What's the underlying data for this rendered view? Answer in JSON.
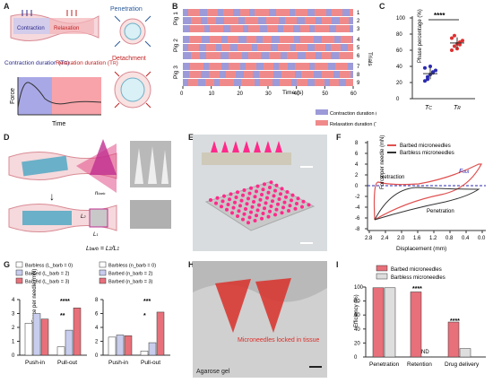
{
  "panels": {
    "A": {
      "letter": "A",
      "contraction_label": "Contraction",
      "relaxation_label": "Relaxation",
      "penetration_label": "Penetration",
      "detachment_label": "Detachment",
      "contraction_duration": "Contraction duration (T_C)",
      "relaxation_duration": "Relaxation duration (T_R)",
      "ylabel": "Force",
      "xlabel": "Time"
    },
    "B": {
      "letter": "B",
      "xlabel": "Time (s)",
      "ylabel": "Trials",
      "group_labels": [
        "Pig 1",
        "Pig 2",
        "Pig 3"
      ],
      "trial_labels": [
        "1",
        "2",
        "3",
        "4",
        "5",
        "6",
        "7",
        "8",
        "9"
      ],
      "xticks": [
        "0",
        "10",
        "20",
        "30",
        "40",
        "50",
        "60"
      ],
      "legend": [
        "Contraction duration (T_C)",
        "Relaxation duration (T_R)"
      ],
      "colors": {
        "contraction": "#9c9ad8",
        "relaxation": "#f08a8a"
      }
    },
    "C": {
      "letter": "C",
      "ylabel": "Phase percentage (%)",
      "yticks": [
        "0",
        "20",
        "40",
        "60",
        "80",
        "100"
      ],
      "xticks": [
        "T_C",
        "T_R"
      ],
      "significance": "****"
    },
    "D": {
      "letter": "D",
      "n_label": "n_barb",
      "l2_label": "L_2",
      "l1_label": "L_1",
      "formula": "L_barb = L_2/L_1"
    },
    "E": {
      "letter": "E"
    },
    "F": {
      "letter": "F",
      "legend": [
        "Barbed microneedles",
        "Barbless microneedles"
      ],
      "ylabel": "Force per needle (mN)",
      "xlabel": "Displacement (mm)",
      "yticks": [
        "8",
        "6",
        "4",
        "2",
        "0",
        "-2",
        "-4",
        "-6",
        "-8"
      ],
      "xticks": [
        "2.8",
        "2.4",
        "2.0",
        "1.6",
        "1.2",
        "0.8",
        "0.4",
        "0.0"
      ],
      "annotations": {
        "retraction": "Retraction",
        "penetration": "Penetration",
        "fout": "F_out"
      }
    },
    "G": {
      "letter": "G",
      "ylabel": "Force per needle (mN)",
      "yticks": [
        "0",
        "1",
        "2",
        "3",
        "4"
      ],
      "xticks": [
        "Push-in",
        "Pull-out"
      ],
      "left_legend": [
        "Barbless (L_barb = 0)",
        "Barbed (L_barb = 2)",
        "Barbed (L_barb = 3)"
      ],
      "right_legend": [
        "Barbless (n_barb = 0)",
        "Barbed (n_barb = 2)",
        "Barbed (n_barb = 3)"
      ],
      "left_sig": [
        "**",
        "****"
      ],
      "right_sig": [
        "*",
        "***"
      ]
    },
    "H": {
      "letter": "H",
      "annotation": "Microneedles locked in tissue",
      "tissue": "Agarose gel"
    },
    "I": {
      "letter": "I",
      "legend": [
        "Barbed microneedles",
        "Barbless microneedles"
      ],
      "ylabel": "Efficiency (%)",
      "yticks": [
        "0",
        "20",
        "40",
        "60",
        "80",
        "100"
      ],
      "xticks": [
        "Penetration",
        "Retention",
        "Drug delivery"
      ],
      "significance": [
        "****",
        "****"
      ],
      "nd_label": "ND"
    }
  },
  "chart_data": [
    {
      "type": "scatter",
      "panel": "C",
      "ylabel": "Phase percentage (%)",
      "ylim": [
        0,
        100
      ],
      "categories": [
        "T_C",
        "T_R"
      ],
      "series": [
        {
          "name": "T_C",
          "values": [
            22,
            27,
            30,
            33,
            35,
            38,
            24,
            40,
            32
          ],
          "mean": 31,
          "sd": 7
        },
        {
          "name": "T_R",
          "values": [
            60,
            65,
            68,
            70,
            72,
            75,
            78,
            62,
            67
          ],
          "mean": 69,
          "sd": 7
        }
      ]
    },
    {
      "type": "bar",
      "panel": "G-left",
      "ylabel": "Force per needle (mN)",
      "ylim": [
        0,
        4
      ],
      "categories": [
        "Push-in",
        "Pull-out"
      ],
      "series": [
        {
          "name": "Barbless (L_barb = 0)",
          "values": [
            2.3,
            0.6
          ]
        },
        {
          "name": "Barbed (L_barb = 2)",
          "values": [
            3.0,
            1.8
          ]
        },
        {
          "name": "Barbed (L_barb = 3)",
          "values": [
            2.6,
            3.4
          ]
        }
      ]
    },
    {
      "type": "bar",
      "panel": "G-right",
      "ylabel": "Force per needle (mN)",
      "ylim": [
        0,
        8
      ],
      "categories": [
        "Push-in",
        "Pull-out"
      ],
      "series": [
        {
          "name": "Barbless (n_barb = 0)",
          "values": [
            2.6,
            0.6
          ]
        },
        {
          "name": "Barbed (n_barb = 2)",
          "values": [
            2.9,
            1.8
          ]
        },
        {
          "name": "Barbed (n_barb = 3)",
          "values": [
            2.8,
            6.2
          ]
        }
      ]
    },
    {
      "type": "bar",
      "panel": "I",
      "ylabel": "Efficiency (%)",
      "ylim": [
        0,
        100
      ],
      "categories": [
        "Penetration",
        "Retention",
        "Drug delivery"
      ],
      "series": [
        {
          "name": "Barbed microneedles",
          "values": [
            99,
            93,
            50
          ]
        },
        {
          "name": "Barbless microneedles",
          "values": [
            99,
            0,
            12
          ]
        }
      ]
    }
  ]
}
